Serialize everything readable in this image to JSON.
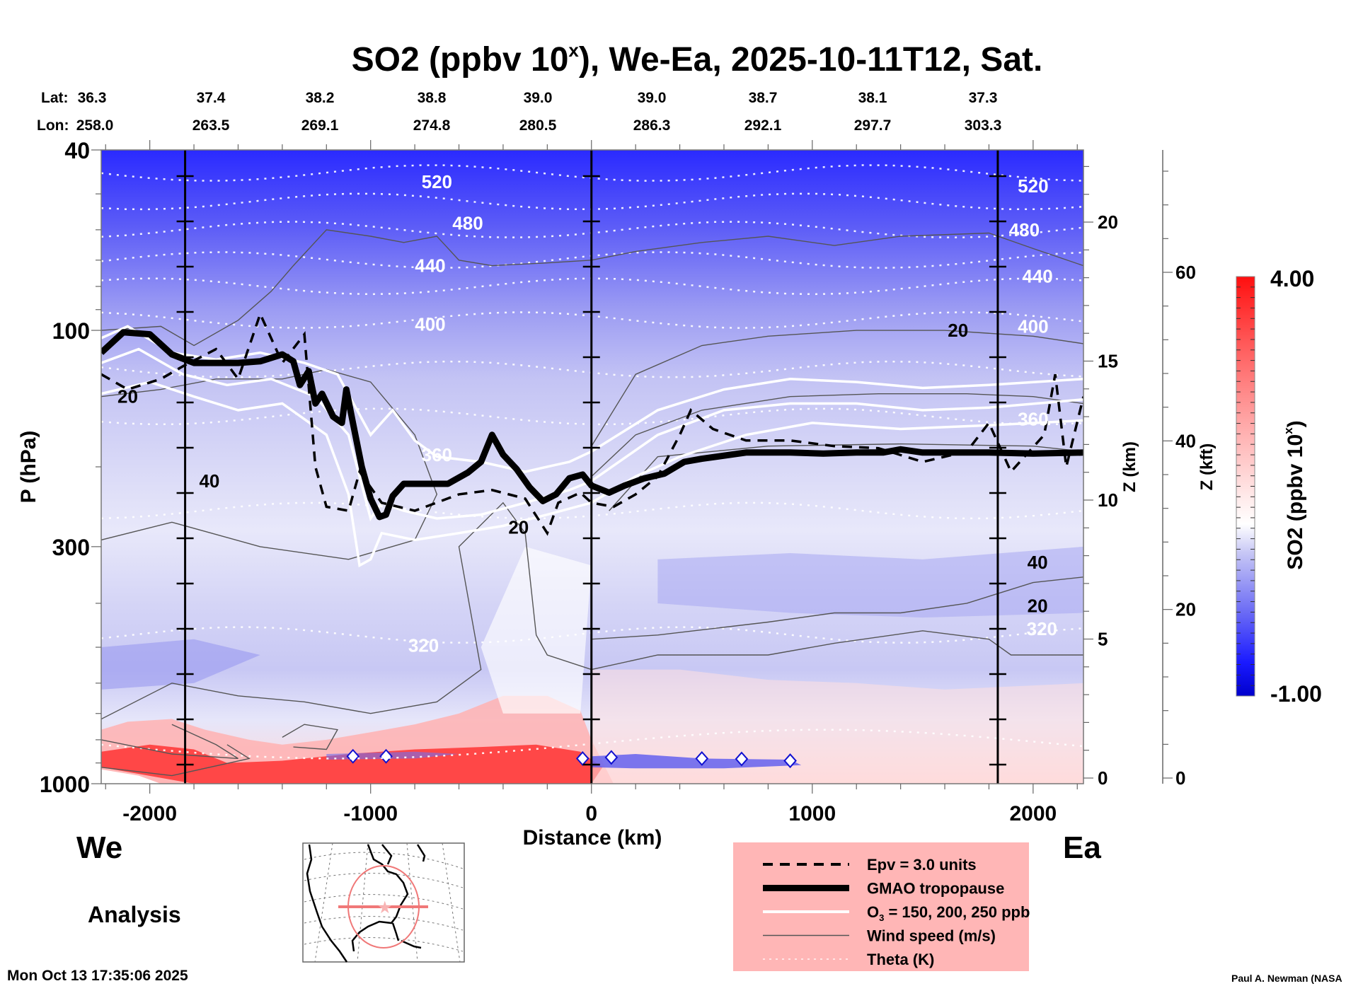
{
  "chart_data": {
    "type": "heatmap",
    "title": "SO2 (ppbv 10",
    "title_sup": "x",
    "title_rest": "), We-Ea, 2025-10-11T12, Sat.",
    "xlabel": "Distance (km)",
    "ylabel": "P (hPa)",
    "xlim": [
      -2220,
      2228
    ],
    "ylim_hpa": [
      1000,
      40
    ],
    "y_scale": "log",
    "x_ticks": [
      -2000,
      -1000,
      0,
      1000,
      2000
    ],
    "y_ticks": [
      40,
      100,
      300,
      1000
    ],
    "z_km_axis": {
      "label": "Z (km)",
      "ticks": [
        0,
        5,
        10,
        15,
        20
      ]
    },
    "z_kft_axis": {
      "label": "Z (kft)",
      "ticks": [
        0,
        20,
        40,
        60
      ]
    },
    "latlon": {
      "lat_label": "Lat:",
      "lon_label": "Lon:",
      "lat": [
        "36.3",
        "37.4",
        "38.2",
        "38.8",
        "39.0",
        "39.0",
        "38.7",
        "38.1",
        "37.3"
      ],
      "lon": [
        "258.0",
        "263.5",
        "269.1",
        "274.8",
        "280.5",
        "286.3",
        "292.1",
        "297.7",
        "303.3"
      ]
    },
    "vertical_markers_km": [
      -1840,
      0,
      1840
    ],
    "colorbar": {
      "label": "SO2 (ppbv 10",
      "label_sup": "x",
      "label_end": ")",
      "min": -1.0,
      "max": 4.0,
      "min_label": "-1.00",
      "max_label": "4.00",
      "low_color": "#0000cc",
      "mid_color": "#ffffff",
      "high_color": "#ff0000"
    },
    "theta_levels": [
      {
        "value": 520,
        "p": 47
      },
      {
        "value": 480,
        "p": 58
      },
      {
        "value": 440,
        "p": 72
      },
      {
        "value": 400,
        "p": 92
      },
      {
        "value": 360,
        "p": 160
      },
      {
        "value": 320,
        "p": 470
      }
    ],
    "theta_labels": [
      {
        "text": "520",
        "x_km": -700,
        "p": 47
      },
      {
        "text": "480",
        "x_km": -560,
        "p": 58
      },
      {
        "text": "440",
        "x_km": -730,
        "p": 72
      },
      {
        "text": "400",
        "x_km": -730,
        "p": 97
      },
      {
        "text": "360",
        "x_km": -700,
        "p": 188
      },
      {
        "text": "320",
        "x_km": -760,
        "p": 495
      },
      {
        "text": "520",
        "x_km": 2000,
        "p": 48
      },
      {
        "text": "480",
        "x_km": 1960,
        "p": 60
      },
      {
        "text": "440",
        "x_km": 2020,
        "p": 76
      },
      {
        "text": "400",
        "x_km": 2000,
        "p": 98
      },
      {
        "text": "360",
        "x_km": 2000,
        "p": 157
      },
      {
        "text": "320",
        "x_km": 2040,
        "p": 455
      }
    ],
    "wind_labels": [
      {
        "text": "20",
        "x_km": -2100,
        "p": 140
      },
      {
        "text": "40",
        "x_km": -1730,
        "p": 215
      },
      {
        "text": "20",
        "x_km": -330,
        "p": 272
      },
      {
        "text": "20",
        "x_km": 1660,
        "p": 100
      },
      {
        "text": "40",
        "x_km": 2020,
        "p": 325
      },
      {
        "text": "20",
        "x_km": 2020,
        "p": 405
      }
    ],
    "tropopause": [
      [
        -2220,
        112
      ],
      [
        -2120,
        101
      ],
      [
        -2000,
        102
      ],
      [
        -1900,
        113
      ],
      [
        -1800,
        118
      ],
      [
        -1600,
        118
      ],
      [
        -1500,
        117
      ],
      [
        -1400,
        113
      ],
      [
        -1350,
        117
      ],
      [
        -1320,
        132
      ],
      [
        -1280,
        123
      ],
      [
        -1250,
        145
      ],
      [
        -1220,
        138
      ],
      [
        -1170,
        155
      ],
      [
        -1130,
        160
      ],
      [
        -1110,
        135
      ],
      [
        -1080,
        160
      ],
      [
        -1040,
        200
      ],
      [
        -1000,
        235
      ],
      [
        -960,
        258
      ],
      [
        -930,
        255
      ],
      [
        -900,
        232
      ],
      [
        -850,
        218
      ],
      [
        -650,
        218
      ],
      [
        -560,
        206
      ],
      [
        -500,
        195
      ],
      [
        -450,
        170
      ],
      [
        -400,
        188
      ],
      [
        -340,
        202
      ],
      [
        -280,
        222
      ],
      [
        -220,
        238
      ],
      [
        -160,
        230
      ],
      [
        -100,
        212
      ],
      [
        -40,
        208
      ],
      [
        0,
        220
      ],
      [
        80,
        228
      ],
      [
        150,
        220
      ],
      [
        240,
        212
      ],
      [
        330,
        207
      ],
      [
        420,
        195
      ],
      [
        500,
        192
      ],
      [
        700,
        186
      ],
      [
        900,
        186
      ],
      [
        1050,
        187
      ],
      [
        1200,
        186
      ],
      [
        1320,
        186
      ],
      [
        1400,
        183
      ],
      [
        1500,
        186
      ],
      [
        1600,
        186
      ],
      [
        1800,
        186
      ],
      [
        2000,
        187
      ],
      [
        2228,
        186
      ]
    ],
    "wind_speed_ranges_ms": [
      20,
      40
    ],
    "so2_field_description": "Negative (blue) SO2 anomalies dominate above ~400 hPa, deepest blue near 40 hPa; positive (red) values in the boundary layer below ~700 hPa from -2200 to 0 km and weak positive east of 1000 km."
  },
  "labels": {
    "we": "We",
    "ea": "Ea",
    "analysis": "Analysis",
    "timestamp": "Mon Oct 13 17:35:06 2025",
    "credit": "Paul A. Newman (NASA"
  },
  "legend": {
    "items": [
      {
        "label": "Epv = 3.0 units",
        "style": "dashed"
      },
      {
        "label": "GMAO tropopause",
        "style": "thick"
      },
      {
        "label": "O",
        "sub": "3",
        "label_rest": " = 150, 200, 250 ppb",
        "style": "white"
      },
      {
        "label": "Wind speed (m/s)",
        "style": "thin"
      },
      {
        "label": "Theta (K)",
        "style": "dotted"
      }
    ],
    "background": "#ffb6b6"
  }
}
